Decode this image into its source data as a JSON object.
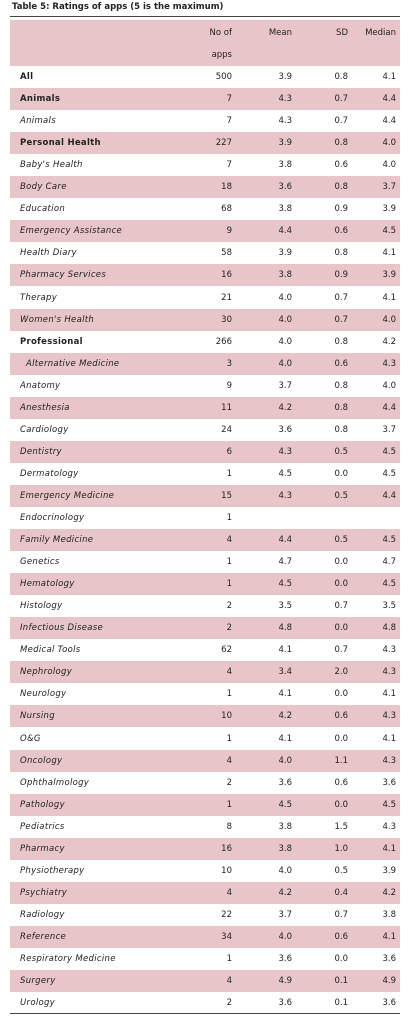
{
  "table": {
    "title": "Table 5: Ratings of apps (5 is the maximum)",
    "header": [
      "No of apps",
      "Mean",
      "SD",
      "Median"
    ],
    "rows": [
      {
        "cells": [
          "All",
          "500",
          "3.9",
          "0.8",
          "4.1"
        ],
        "bold": true
      },
      {
        "cells": [
          "Animals",
          "7",
          "4.3",
          "0.7",
          "4.4"
        ],
        "bold": true
      },
      {
        "cells": [
          "Animals",
          "7",
          "4.3",
          "0.7",
          "4.4"
        ]
      },
      {
        "cells": [
          "Personal Health",
          "227",
          "3.9",
          "0.8",
          "4.0"
        ],
        "bold": true
      },
      {
        "cells": [
          "Baby's Health",
          "7",
          "3.8",
          "0.6",
          "4.0"
        ]
      },
      {
        "cells": [
          "Body Care",
          "18",
          "3.6",
          "0.8",
          "3.7"
        ]
      },
      {
        "cells": [
          "Education",
          "68",
          "3.8",
          "0.9",
          "3.9"
        ]
      },
      {
        "cells": [
          "Emergency Assistance",
          "9",
          "4.4",
          "0.6",
          "4.5"
        ]
      },
      {
        "cells": [
          "Health Diary",
          "58",
          "3.9",
          "0.8",
          "4.1"
        ]
      },
      {
        "cells": [
          "Pharmacy Services",
          "16",
          "3.8",
          "0.9",
          "3.9"
        ]
      },
      {
        "cells": [
          "Therapy",
          "21",
          "4.0",
          "0.7",
          "4.1"
        ]
      },
      {
        "cells": [
          "Women's Health",
          "30",
          "4.0",
          "0.7",
          "4.0"
        ]
      },
      {
        "cells": [
          "Professional",
          "266",
          "4.0",
          "0.8",
          "4.2"
        ],
        "bold": true
      },
      {
        "cells": [
          "Alternative Medicine",
          "3",
          "4.0",
          "0.6",
          "4.3"
        ]
      },
      {
        "cells": [
          "Anatomy",
          "9",
          "3.7",
          "0.8",
          "4.0"
        ]
      },
      {
        "cells": [
          "Anesthesia",
          "11",
          "4.2",
          "0.8",
          "4.4"
        ]
      },
      {
        "cells": [
          "Cardiology",
          "24",
          "3.6",
          "0.8",
          "3.7"
        ]
      },
      {
        "cells": [
          "Dentistry",
          "6",
          "4.3",
          "0.5",
          "4.5"
        ]
      },
      {
        "cells": [
          "Dermatology",
          "1",
          "4.5",
          "0.0",
          "4.5"
        ]
      },
      {
        "cells": [
          "Emergency Medicine",
          "15",
          "4.3",
          "0.5",
          "4.4"
        ]
      },
      {
        "cells": [
          "Endocrinology",
          "1"
        ]
      },
      {
        "cells": [
          "Family Medicine",
          "4",
          "4.4",
          "0.5",
          "4.5"
        ]
      },
      {
        "cells": [
          "Genetics",
          "1",
          "4.7",
          "0.0",
          "4.7"
        ]
      },
      {
        "cells": [
          "Hematology",
          "1",
          "4.5",
          "0.0",
          "4.5"
        ]
      },
      {
        "cells": [
          "Histology",
          "2",
          "3.5",
          "0.7",
          "3.5"
        ]
      },
      {
        "cells": [
          "Infectious Disease",
          "2",
          "4.8",
          "0.0",
          "4.8"
        ]
      },
      {
        "cells": [
          "Medical Tools",
          "62",
          "4.1",
          "0.7",
          "4.3"
        ]
      },
      {
        "cells": [
          "Nephrology",
          "4",
          "3.4",
          "2.0",
          "4.3"
        ]
      },
      {
        "cells": [
          "Neurology",
          "1",
          "4.1",
          "0.0",
          "4.1"
        ]
      },
      {
        "cells": [
          "Nursing",
          "10",
          "4.2",
          "0.6",
          "4.3"
        ]
      },
      {
        "cells": [
          "O&G",
          "1",
          "4.1",
          "0.0",
          "4.1"
        ]
      },
      {
        "cells": [
          "Oncology",
          "4",
          "4.0",
          "1.1",
          "4.3"
        ]
      },
      {
        "cells": [
          "Ophthalmology",
          "2",
          "3.6",
          "0.6",
          "3.6"
        ]
      },
      {
        "cells": [
          "Pathology",
          "1",
          "4.5",
          "0.0",
          "4.5"
        ]
      },
      {
        "cells": [
          "Pediatrics",
          "8",
          "3.8",
          "1.5",
          "4.3"
        ]
      },
      {
        "cells": [
          "Pharmacy",
          "16",
          "3.8",
          "1.0",
          "4.1"
        ]
      },
      {
        "cells": [
          "Physiotherapy",
          "10",
          "4.0",
          "0.5",
          "3.9"
        ]
      },
      {
        "cells": [
          "Psychiatry",
          "4",
          "4.2",
          "0.4",
          "4.2"
        ]
      },
      {
        "cells": [
          "Radiology",
          "22",
          "3.7",
          "0.7",
          "3.8"
        ]
      },
      {
        "cells": [
          "Reference",
          "34",
          "4.0",
          "0.6",
          "4.1"
        ]
      },
      {
        "cells": [
          "Respiratory Medicine",
          "1",
          "3.6",
          "0.0",
          "3.6"
        ]
      },
      {
        "cells": [
          "Surgery",
          "4",
          "4.9",
          "0.1",
          "4.9"
        ]
      },
      {
        "cells": [
          "Urology",
          "2",
          "3.6",
          "0.1",
          "3.6"
        ]
      }
    ]
  }
}
